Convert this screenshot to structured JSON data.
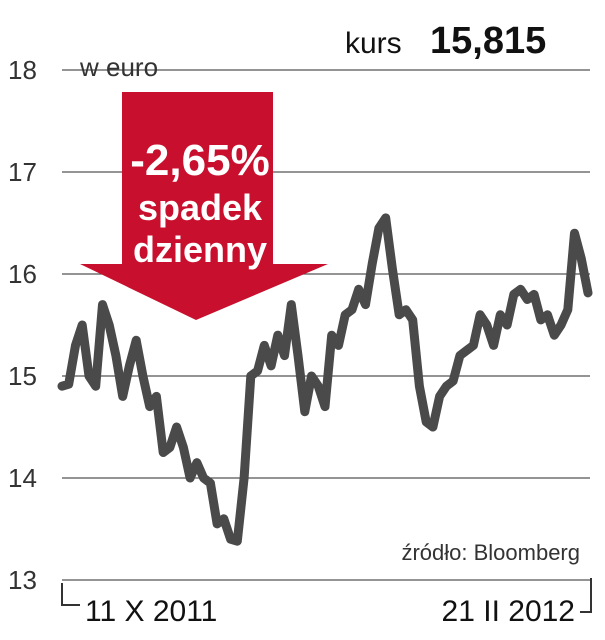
{
  "chart_data": {
    "type": "line",
    "unit_label": "w euro",
    "kurs": {
      "label": "kurs",
      "value": "15,815"
    },
    "change": {
      "percent": "-2,65%",
      "line1": "spadek",
      "line2": "dzienny"
    },
    "source": "źródło: Bloomberg",
    "x_start_label": "11 X 2011",
    "x_end_label": "21 II 2012",
    "y_ticks": [
      "18",
      "17",
      "16",
      "15",
      "14",
      "13"
    ],
    "ylim": [
      13,
      18
    ],
    "grid": true,
    "series": [
      {
        "values": [
          14.9,
          14.92,
          15.3,
          15.5,
          15.0,
          14.9,
          15.7,
          15.5,
          15.2,
          14.8,
          15.1,
          15.35,
          15.0,
          14.7,
          14.8,
          14.25,
          14.3,
          14.5,
          14.3,
          14.0,
          14.15,
          14.0,
          13.95,
          13.55,
          13.6,
          13.4,
          13.38,
          14.0,
          15.0,
          15.05,
          15.3,
          15.1,
          15.4,
          15.2,
          15.7,
          15.2,
          14.65,
          15.0,
          14.9,
          14.7,
          15.4,
          15.3,
          15.6,
          15.65,
          15.85,
          15.7,
          16.1,
          16.45,
          16.55,
          16.05,
          15.6,
          15.65,
          15.55,
          14.9,
          14.55,
          14.5,
          14.8,
          14.9,
          14.95,
          15.2,
          15.25,
          15.3,
          15.6,
          15.5,
          15.3,
          15.6,
          15.5,
          15.8,
          15.85,
          15.75,
          15.8,
          15.55,
          15.6,
          15.4,
          15.5,
          15.65,
          16.4,
          16.15,
          15.815
        ]
      }
    ],
    "colors": {
      "line": "#4a4a4a",
      "arrow": "#c8102e",
      "grid": "#555555"
    }
  }
}
